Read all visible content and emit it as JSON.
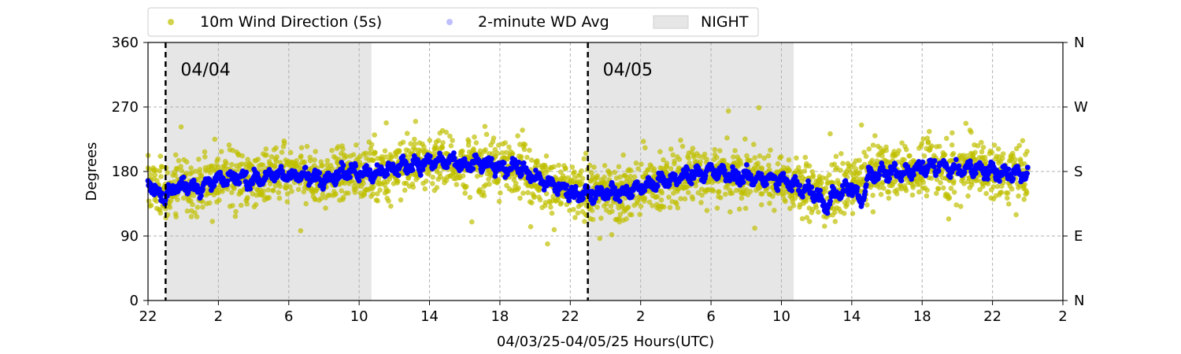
{
  "chart_data": {
    "type": "scatter",
    "xlabel": "04/03/25-04/05/25  Hours(UTC)",
    "ylabel": "Degrees",
    "x_unit": "hours since 04/03/25 00:00 UTC",
    "xlim": [
      22,
      74
    ],
    "ylim": [
      0,
      360
    ],
    "x_ticks": [
      22,
      26,
      30,
      34,
      38,
      42,
      46,
      50,
      54,
      58,
      62,
      66,
      70,
      74
    ],
    "x_tick_labels": [
      "22",
      "2",
      "6",
      "10",
      "14",
      "18",
      "22",
      "2",
      "6",
      "10",
      "14",
      "18",
      "22",
      "2"
    ],
    "y_ticks": [
      0,
      90,
      180,
      270,
      360
    ],
    "y_tick_labels": [
      "0",
      "90",
      "180",
      "270",
      "360"
    ],
    "right_axis_ticks": [
      0,
      90,
      180,
      270,
      360
    ],
    "right_axis_labels": [
      "N",
      "E",
      "S",
      "W",
      "N"
    ],
    "grid": true,
    "legend_position": "top, above plot",
    "legend": [
      {
        "label": "10m Wind Direction (5s)",
        "kind": "marker",
        "color": "#bfbf00"
      },
      {
        "label": "2-minute WD Avg",
        "kind": "marker",
        "color": "#0000ff"
      },
      {
        "label": "NIGHT",
        "kind": "patch",
        "color": "#e6e6e6"
      }
    ],
    "night_spans": [
      [
        23.0,
        34.7
      ],
      [
        47.0,
        58.7
      ]
    ],
    "day_boundaries": [
      {
        "x": 23.0,
        "label": "04/04"
      },
      {
        "x": 47.0,
        "label": "04/05"
      }
    ],
    "series": [
      {
        "name": "10m Wind Direction (5s)",
        "color": "#bfbf00",
        "spread": 27,
        "x": [
          22,
          23,
          24,
          25,
          26,
          27,
          28,
          29,
          30,
          31,
          32,
          33,
          34,
          35,
          36,
          37,
          38,
          39,
          40,
          41,
          42,
          43,
          44,
          45,
          46,
          47,
          48,
          49,
          50,
          51,
          52,
          53,
          54,
          55,
          56,
          57,
          58,
          59,
          60,
          61,
          62,
          63,
          64,
          65,
          66,
          67,
          68,
          69,
          70,
          71,
          72
        ],
        "y": [
          165,
          150,
          160,
          158,
          170,
          172,
          168,
          174,
          176,
          172,
          170,
          178,
          180,
          178,
          185,
          190,
          192,
          195,
          188,
          192,
          185,
          188,
          170,
          162,
          150,
          148,
          152,
          150,
          158,
          165,
          170,
          178,
          180,
          175,
          172,
          170,
          168,
          158,
          150,
          148,
          160,
          175,
          178,
          180,
          185,
          188,
          182,
          185,
          180,
          178,
          176
        ]
      },
      {
        "name": "2-minute WD Avg",
        "color": "#0000ff",
        "x": [
          22,
          22.5,
          23,
          23.5,
          24,
          25,
          26,
          27,
          28,
          29,
          30,
          31,
          32,
          33,
          34,
          35,
          36,
          37,
          38,
          39,
          40,
          41,
          42,
          43,
          44,
          45,
          46,
          47,
          48,
          49,
          50,
          51,
          52,
          53,
          54,
          55,
          56,
          57,
          58,
          59,
          60,
          60.5,
          61,
          62,
          62.5,
          63,
          64,
          65,
          66,
          67,
          68,
          69,
          70,
          71,
          72
        ],
        "y": [
          168,
          150,
          145,
          158,
          160,
          158,
          170,
          172,
          168,
          174,
          176,
          172,
          170,
          178,
          180,
          178,
          185,
          190,
          192,
          195,
          188,
          192,
          185,
          188,
          170,
          162,
          150,
          148,
          152,
          150,
          158,
          165,
          170,
          178,
          180,
          175,
          172,
          170,
          168,
          158,
          150,
          130,
          148,
          160,
          135,
          175,
          178,
          180,
          185,
          188,
          182,
          185,
          180,
          178,
          176
        ]
      }
    ]
  }
}
